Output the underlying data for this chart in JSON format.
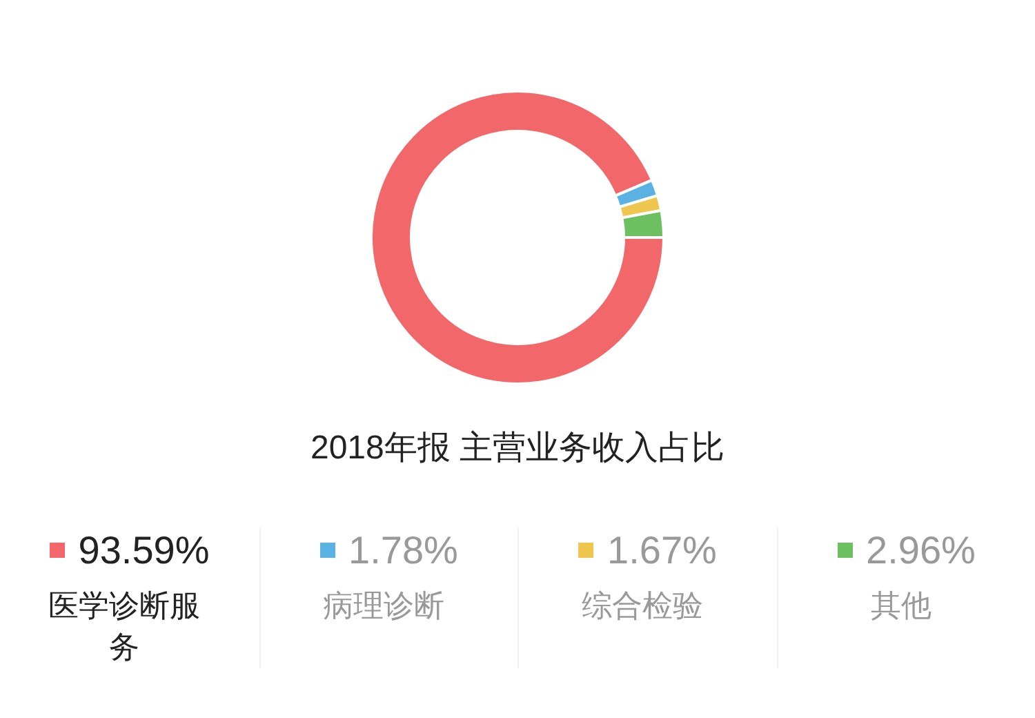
{
  "chart_data": {
    "type": "donut",
    "title": "2018年报 主营业务收入占比",
    "categories": [
      "医学诊断服务",
      "病理诊断",
      "综合检验",
      "其他"
    ],
    "values": [
      93.59,
      1.78,
      1.67,
      2.96
    ],
    "colors": [
      "#f2676a",
      "#5ab2e2",
      "#efc74e",
      "#6cc05f"
    ],
    "value_labels": [
      "93.59%",
      "1.78%",
      "1.67%",
      "2.96%"
    ],
    "legend": "bottom"
  }
}
